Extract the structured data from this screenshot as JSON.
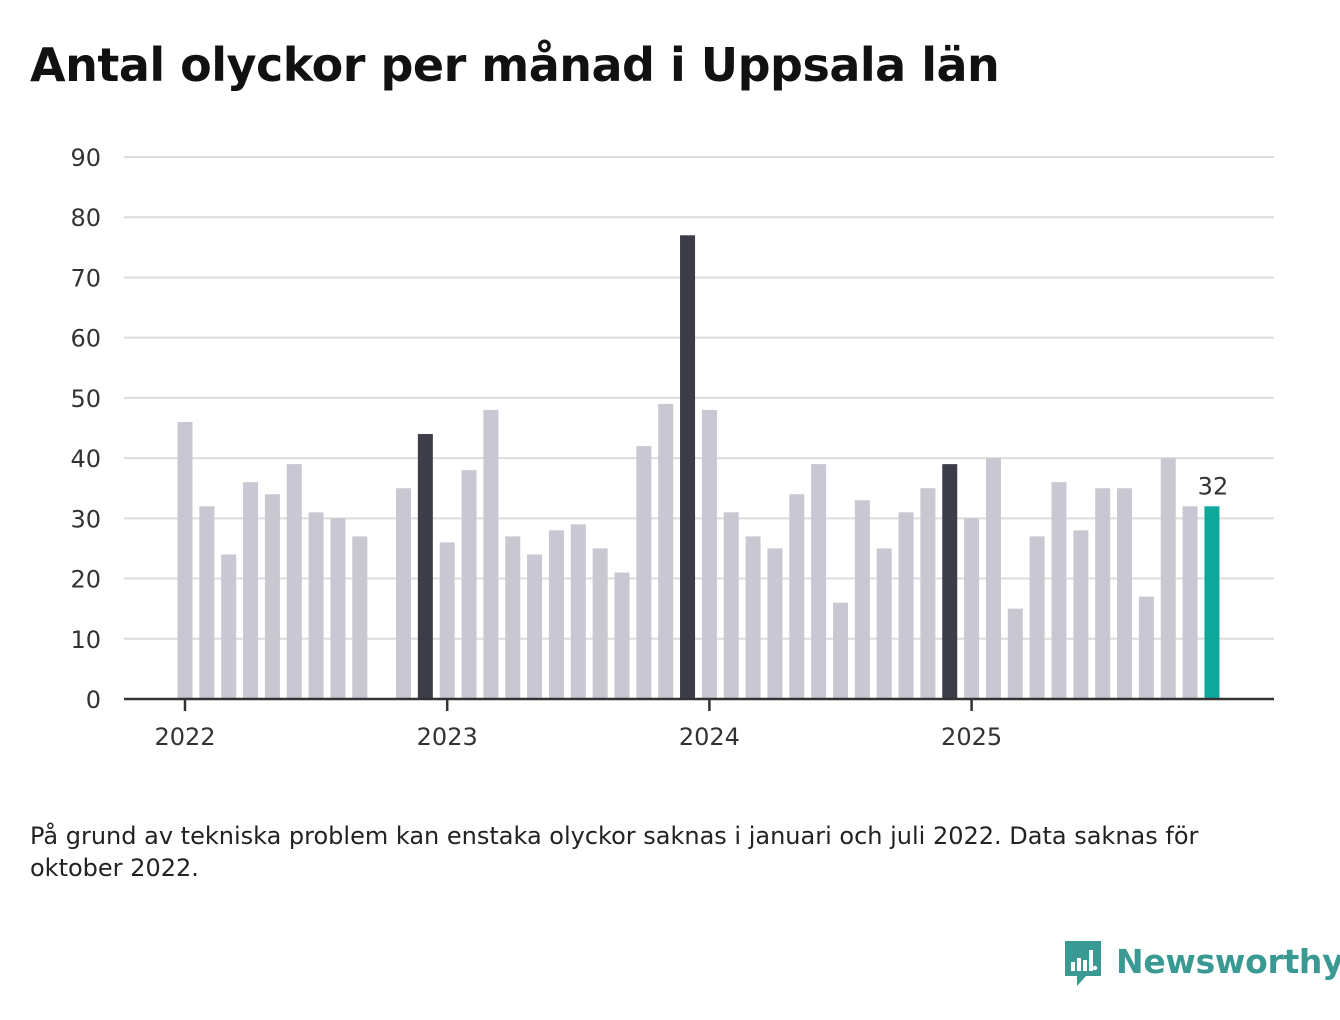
{
  "title": "Antal olyckor per månad i Uppsala län",
  "footnote": "På grund av tekniska problem kan enstaka olyckor saknas i januari och juli 2022. Data saknas för oktober 2022.",
  "brand": {
    "name": "Newsworthy",
    "color": "#3a9a93"
  },
  "colors": {
    "default": "#c8c7d2",
    "highlight": "#3d3d4a",
    "latest": "#0fa89c",
    "grid": "#dcdcdc",
    "axis": "#333333"
  },
  "chart_data": {
    "type": "bar",
    "title": "Antal olyckor per månad i Uppsala län",
    "xlabel": "",
    "ylabel": "",
    "ylim": [
      0,
      90
    ],
    "yticks": [
      "0",
      "10",
      "20",
      "30",
      "40",
      "50",
      "60",
      "70",
      "80",
      "90"
    ],
    "xticks": [
      {
        "label": "2022",
        "index": 0
      },
      {
        "label": "2023",
        "index": 12
      },
      {
        "label": "2024",
        "index": 24
      },
      {
        "label": "2025",
        "index": 36
      }
    ],
    "categories": [
      "2022-01",
      "2022-02",
      "2022-03",
      "2022-04",
      "2022-05",
      "2022-06",
      "2022-07",
      "2022-08",
      "2022-09",
      "2022-10",
      "2022-11",
      "2022-12",
      "2023-01",
      "2023-02",
      "2023-03",
      "2023-04",
      "2023-05",
      "2023-06",
      "2023-07",
      "2023-08",
      "2023-09",
      "2023-10",
      "2023-11",
      "2023-12",
      "2024-01",
      "2024-02",
      "2024-03",
      "2024-04",
      "2024-05",
      "2024-06",
      "2024-07",
      "2024-08",
      "2024-09",
      "2024-10",
      "2024-11",
      "2024-12",
      "2025-01",
      "2025-02",
      "2025-03",
      "2025-04",
      "2025-05",
      "2025-06",
      "2025-07",
      "2025-08",
      "2025-09",
      "2025-10",
      "2025-11",
      "2025-12"
    ],
    "values": [
      46,
      32,
      24,
      36,
      34,
      39,
      31,
      30,
      27,
      null,
      35,
      44,
      26,
      38,
      48,
      27,
      24,
      28,
      29,
      25,
      21,
      42,
      49,
      77,
      48,
      31,
      27,
      25,
      34,
      39,
      16,
      33,
      25,
      31,
      35,
      39,
      30,
      40,
      15,
      27,
      36,
      28,
      35,
      35,
      17,
      40,
      32,
      32
    ],
    "highlight_months": [
      "2022-12",
      "2023-12",
      "2024-12"
    ],
    "latest_month": "2025-12",
    "data_labels": [
      {
        "category": "2025-12",
        "text": "32"
      }
    ]
  }
}
